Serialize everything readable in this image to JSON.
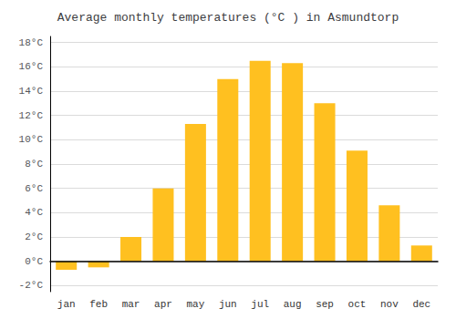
{
  "chart_data": {
    "type": "bar",
    "title": "Average monthly temperatures (°C ) in Asmundtorp",
    "categories": [
      "jan",
      "feb",
      "mar",
      "apr",
      "may",
      "jun",
      "jul",
      "aug",
      "sep",
      "oct",
      "nov",
      "dec"
    ],
    "values": [
      -0.7,
      -0.5,
      2.0,
      6.0,
      11.3,
      15.0,
      16.5,
      16.3,
      13.0,
      9.1,
      4.6,
      1.3
    ],
    "color": "#FFC020",
    "ylim": [
      -2.5,
      18.5
    ],
    "yticks": [
      {
        "value": -2,
        "label": "-2°C"
      },
      {
        "value": 0,
        "label": "0°C"
      },
      {
        "value": 2,
        "label": "2°C"
      },
      {
        "value": 4,
        "label": "4°C"
      },
      {
        "value": 6,
        "label": "6°C"
      },
      {
        "value": 8,
        "label": "8°C"
      },
      {
        "value": 10,
        "label": "10°C"
      },
      {
        "value": 12,
        "label": "12°C"
      },
      {
        "value": 14,
        "label": "14°C"
      },
      {
        "value": 16,
        "label": "16°C"
      },
      {
        "value": 18,
        "label": "18°C"
      }
    ],
    "grid": true
  }
}
